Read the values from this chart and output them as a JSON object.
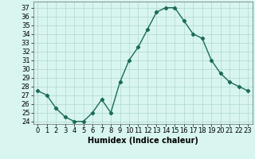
{
  "title": "",
  "xlabel": "Humidex (Indice chaleur)",
  "ylabel": "",
  "x_values": [
    0,
    1,
    2,
    3,
    4,
    5,
    6,
    7,
    8,
    9,
    10,
    11,
    12,
    13,
    14,
    15,
    16,
    17,
    18,
    19,
    20,
    21,
    22,
    23
  ],
  "y_values": [
    27.5,
    27.0,
    25.5,
    24.5,
    24.0,
    24.0,
    25.0,
    26.5,
    25.0,
    28.5,
    31.0,
    32.5,
    34.5,
    36.5,
    37.0,
    37.0,
    35.5,
    34.0,
    33.5,
    31.0,
    29.5,
    28.5,
    28.0,
    27.5
  ],
  "line_color": "#1a6b5a",
  "marker": "D",
  "marker_size": 2.2,
  "background_color": "#d8f5f0",
  "grid_color": "#b0d8d0",
  "ylim": [
    23.7,
    37.7
  ],
  "yticks": [
    24,
    25,
    26,
    27,
    28,
    29,
    30,
    31,
    32,
    33,
    34,
    35,
    36,
    37
  ],
  "xlim": [
    -0.5,
    23.5
  ],
  "xticks": [
    0,
    1,
    2,
    3,
    4,
    5,
    6,
    7,
    8,
    9,
    10,
    11,
    12,
    13,
    14,
    15,
    16,
    17,
    18,
    19,
    20,
    21,
    22,
    23
  ],
  "xlabel_fontsize": 7.0,
  "tick_fontsize": 6.0,
  "line_width": 1.0
}
